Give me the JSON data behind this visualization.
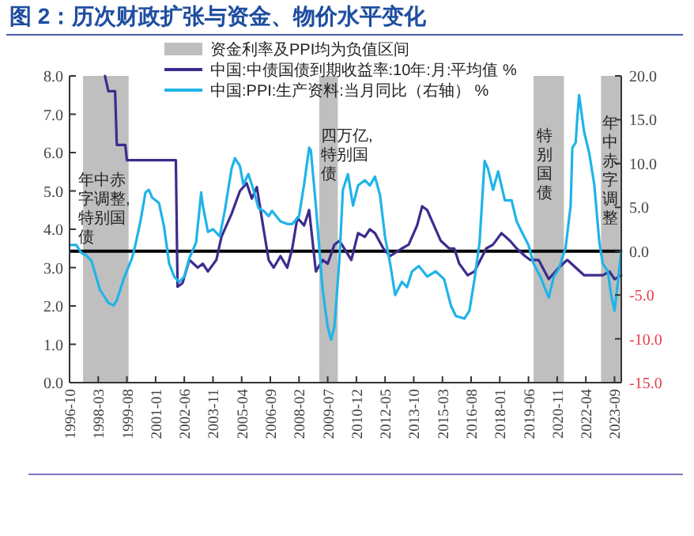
{
  "chart_data": {
    "type": "line",
    "title": "图 2：历次财政扩张与资金、物价水平变化",
    "legend": "top",
    "series": [
      {
        "name": "中国:中债国债到期收益率:10年:月:平均值 %",
        "color": "#3d2c8d",
        "x": [
          "1998-07",
          "1998-09",
          "1999-01",
          "1999-02",
          "1999-07",
          "1999-08",
          "2002-01",
          "2002-02",
          "2002-05",
          "2002-09",
          "2003-02",
          "2003-05",
          "2003-08",
          "2004-01",
          "2004-04",
          "2004-10",
          "2005-03",
          "2005-07",
          "2005-10",
          "2006-01",
          "2006-05",
          "2006-08",
          "2006-11",
          "2007-03",
          "2007-07",
          "2007-10",
          "2008-01",
          "2008-05",
          "2008-08",
          "2008-12",
          "2009-04",
          "2009-07",
          "2009-11",
          "2010-02",
          "2010-09",
          "2011-01",
          "2011-05",
          "2011-08",
          "2011-11",
          "2012-04",
          "2012-08",
          "2013-03",
          "2013-07",
          "2013-12",
          "2014-03",
          "2014-06",
          "2014-09",
          "2015-02",
          "2015-07",
          "2015-10",
          "2016-01",
          "2016-06",
          "2016-10",
          "2017-05",
          "2017-09",
          "2018-02",
          "2018-07",
          "2018-11",
          "2019-04",
          "2019-07",
          "2019-12",
          "2020-06",
          "2020-12",
          "2021-05",
          "2021-10",
          "2022-03",
          "2022-09",
          "2023-02",
          "2023-06",
          "2023-09",
          "2024-01"
        ],
        "values": [
          8.0,
          7.6,
          7.6,
          6.2,
          6.2,
          5.8,
          5.8,
          2.5,
          2.6,
          3.2,
          3.0,
          3.1,
          2.9,
          3.2,
          3.8,
          4.4,
          5.0,
          5.2,
          4.8,
          5.1,
          4.0,
          3.2,
          3.0,
          3.3,
          3.0,
          3.5,
          4.3,
          4.1,
          4.5,
          2.9,
          3.2,
          3.1,
          3.6,
          3.7,
          3.2,
          3.9,
          3.8,
          4.0,
          3.9,
          3.5,
          3.3,
          3.5,
          3.6,
          4.1,
          4.6,
          4.5,
          4.2,
          3.7,
          3.5,
          3.5,
          3.1,
          2.8,
          2.9,
          3.5,
          3.6,
          3.9,
          3.7,
          3.5,
          3.3,
          3.2,
          3.2,
          2.7,
          3.0,
          3.2,
          3.0,
          2.8,
          2.8,
          2.8,
          2.9,
          2.7,
          2.8
        ]
      },
      {
        "name": "中国:PPI:生产资料:当月同比（右轴） %",
        "color": "#1fb4e8",
        "axis": "y2",
        "x": [
          "1996-10",
          "1997-02",
          "1997-05",
          "1997-08",
          "1997-11",
          "1998-04",
          "1998-09",
          "1998-12",
          "1999-02",
          "1999-06",
          "1999-11",
          "2000-01",
          "2000-04",
          "2000-07",
          "2000-09",
          "2000-11",
          "2001-03",
          "2001-06",
          "2001-09",
          "2001-12",
          "2002-03",
          "2002-06",
          "2002-09",
          "2003-01",
          "2003-04",
          "2003-05",
          "2003-08",
          "2003-11",
          "2004-03",
          "2004-06",
          "2004-10",
          "2004-12",
          "2005-03",
          "2005-05",
          "2005-08",
          "2005-11",
          "2006-02",
          "2006-05",
          "2006-08",
          "2006-10",
          "2007-03",
          "2007-07",
          "2007-10",
          "2008-02",
          "2008-05",
          "2008-08",
          "2008-09",
          "2008-12",
          "2009-04",
          "2009-07",
          "2009-09",
          "2009-11",
          "2010-02",
          "2010-04",
          "2010-07",
          "2010-10",
          "2011-01",
          "2011-05",
          "2011-08",
          "2011-11",
          "2012-02",
          "2012-05",
          "2012-08",
          "2012-11",
          "2013-03",
          "2013-06",
          "2013-09",
          "2014-01",
          "2014-06",
          "2014-11",
          "2015-04",
          "2015-08",
          "2015-11",
          "2016-04",
          "2016-07",
          "2016-10",
          "2017-01",
          "2017-04",
          "2017-06",
          "2017-09",
          "2017-12",
          "2018-04",
          "2018-08",
          "2018-11",
          "2019-02",
          "2019-06",
          "2019-09",
          "2020-01",
          "2020-06",
          "2020-09",
          "2020-12",
          "2021-04",
          "2021-07",
          "2021-08",
          "2021-10",
          "2021-11",
          "2021-12",
          "2022-03",
          "2022-06",
          "2022-09",
          "2022-12",
          "2023-02",
          "2023-05",
          "2023-07",
          "2023-09",
          "2023-11",
          "2024-01"
        ],
        "values": [
          0.7,
          0.7,
          -0.2,
          -0.5,
          -1.1,
          -4.4,
          -5.9,
          -6.2,
          -5.6,
          -3.2,
          -0.8,
          0.7,
          3.4,
          6.7,
          7.0,
          6.1,
          5.5,
          2.8,
          -1.4,
          -2.9,
          -3.5,
          -2.9,
          -0.8,
          1.0,
          6.7,
          5.2,
          2.2,
          2.5,
          1.7,
          4.6,
          9.4,
          10.6,
          9.7,
          7.6,
          8.8,
          7.0,
          4.9,
          4.6,
          4.0,
          4.6,
          3.4,
          3.1,
          3.1,
          4.0,
          7.6,
          11.8,
          11.5,
          5.2,
          -4.4,
          -8.6,
          -10.1,
          -8.6,
          -0.8,
          7.0,
          8.8,
          5.2,
          7.5,
          8.1,
          7.5,
          8.5,
          6.4,
          1.6,
          -1.4,
          -5.0,
          -3.5,
          -4.1,
          -2.3,
          -1.7,
          -2.9,
          -2.3,
          -3.2,
          -6.2,
          -7.4,
          -7.7,
          -6.8,
          -3.2,
          1.0,
          10.3,
          9.4,
          7.0,
          9.1,
          5.8,
          5.8,
          3.4,
          2.2,
          0.7,
          -1.4,
          -2.9,
          -5.3,
          -2.9,
          -2.0,
          0.4,
          5.2,
          11.8,
          12.4,
          15.4,
          17.8,
          13.6,
          11.2,
          7.6,
          1.0,
          -1.4,
          -2.3,
          -5.0,
          -6.8,
          -3.5,
          0.1
        ]
      }
    ],
    "xlim": [
      "1996-10",
      "2024-01"
    ],
    "xticks": [
      "1996-10",
      "1998-03",
      "1999-08",
      "2001-01",
      "2002-06",
      "2003-11",
      "2005-04",
      "2006-09",
      "2008-02",
      "2009-07",
      "2010-12",
      "2012-05",
      "2013-10",
      "2015-03",
      "2016-08",
      "2018-01",
      "2019-06",
      "2020-11",
      "2022-04",
      "2023-09"
    ],
    "ylim": [
      0,
      8
    ],
    "yticks": [
      {
        "value": 0,
        "label": "0.0"
      },
      {
        "value": 1,
        "label": "1.0"
      },
      {
        "value": 2,
        "label": "2.0"
      },
      {
        "value": 3,
        "label": "3.0"
      },
      {
        "value": 4,
        "label": "4.0"
      },
      {
        "value": 5,
        "label": "5.0"
      },
      {
        "value": 6,
        "label": "6.0"
      },
      {
        "value": 7,
        "label": "7.0"
      },
      {
        "value": 8,
        "label": "8.0"
      }
    ],
    "y2lim": [
      -15,
      20
    ],
    "y2ticks": [
      {
        "value": -15,
        "label": "-15.0"
      },
      {
        "value": -10,
        "label": "-10.0"
      },
      {
        "value": -5,
        "label": "-5.0"
      },
      {
        "value": 0,
        "label": "0.0"
      },
      {
        "value": 5,
        "label": "5.0"
      },
      {
        "value": 10,
        "label": "10.0"
      },
      {
        "value": 15,
        "label": "15.0"
      },
      {
        "value": 20,
        "label": "20.0"
      }
    ],
    "bands": [
      {
        "axis": "x",
        "from": "1997-06",
        "to": "1999-09",
        "label": "资金利率及PPI均为负值区间",
        "color": "#bfbfbf"
      },
      {
        "axis": "x",
        "from": "2009-02",
        "to": "2010-01",
        "color": "#bfbfbf"
      },
      {
        "axis": "x",
        "from": "2019-09",
        "to": "2021-03",
        "color": "#bfbfbf"
      },
      {
        "axis": "x",
        "from": "2023-01",
        "to": "2024-01",
        "color": "#bfbfbf"
      }
    ],
    "ref_lines": [
      {
        "axis": "y2",
        "value": 0,
        "color": "#000000"
      }
    ],
    "annotations": [
      "年中赤字调整,特别国债",
      "四万亿,特别国债",
      "特别国债",
      "年中赤字调整"
    ]
  }
}
